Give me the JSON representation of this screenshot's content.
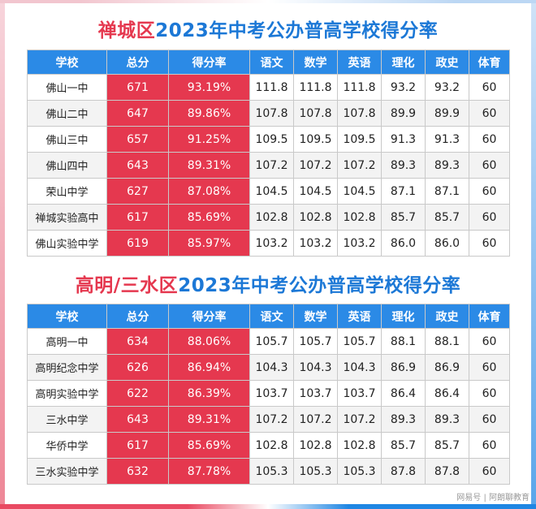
{
  "colors": {
    "red": "#e5384f",
    "blue": "#1c78d6",
    "header_blue": "#2b8ae6"
  },
  "section1": {
    "title_district": "禅城区",
    "title_rest": "2023年中考公办普高学校得分率",
    "headers": [
      "学校",
      "总分",
      "得分率",
      "语文",
      "数学",
      "英语",
      "理化",
      "政史",
      "体育"
    ],
    "rows": [
      [
        "佛山一中",
        "671",
        "93.19%",
        "111.8",
        "111.8",
        "111.8",
        "93.2",
        "93.2",
        "60"
      ],
      [
        "佛山二中",
        "647",
        "89.86%",
        "107.8",
        "107.8",
        "107.8",
        "89.9",
        "89.9",
        "60"
      ],
      [
        "佛山三中",
        "657",
        "91.25%",
        "109.5",
        "109.5",
        "109.5",
        "91.3",
        "91.3",
        "60"
      ],
      [
        "佛山四中",
        "643",
        "89.31%",
        "107.2",
        "107.2",
        "107.2",
        "89.3",
        "89.3",
        "60"
      ],
      [
        "荣山中学",
        "627",
        "87.08%",
        "104.5",
        "104.5",
        "104.5",
        "87.1",
        "87.1",
        "60"
      ],
      [
        "禅城实验高中",
        "617",
        "85.69%",
        "102.8",
        "102.8",
        "102.8",
        "85.7",
        "85.7",
        "60"
      ],
      [
        "佛山实验中学",
        "619",
        "85.97%",
        "103.2",
        "103.2",
        "103.2",
        "86.0",
        "86.0",
        "60"
      ]
    ]
  },
  "section2": {
    "title_district": "高明/三水区",
    "title_rest": "2023年中考公办普高学校得分率",
    "headers": [
      "学校",
      "总分",
      "得分率",
      "语文",
      "数学",
      "英语",
      "理化",
      "政史",
      "体育"
    ],
    "rows": [
      [
        "高明一中",
        "634",
        "88.06%",
        "105.7",
        "105.7",
        "105.7",
        "88.1",
        "88.1",
        "60"
      ],
      [
        "高明纪念中学",
        "626",
        "86.94%",
        "104.3",
        "104.3",
        "104.3",
        "86.9",
        "86.9",
        "60"
      ],
      [
        "高明实验中学",
        "622",
        "86.39%",
        "103.7",
        "103.7",
        "103.7",
        "86.4",
        "86.4",
        "60"
      ],
      [
        "三水中学",
        "643",
        "89.31%",
        "107.2",
        "107.2",
        "107.2",
        "89.3",
        "89.3",
        "60"
      ],
      [
        "华侨中学",
        "617",
        "85.69%",
        "102.8",
        "102.8",
        "102.8",
        "85.7",
        "85.7",
        "60"
      ],
      [
        "三水实验中学",
        "632",
        "87.78%",
        "105.3",
        "105.3",
        "105.3",
        "87.8",
        "87.8",
        "60"
      ]
    ]
  },
  "watermark": "网易号 | 阿朗聊教育"
}
